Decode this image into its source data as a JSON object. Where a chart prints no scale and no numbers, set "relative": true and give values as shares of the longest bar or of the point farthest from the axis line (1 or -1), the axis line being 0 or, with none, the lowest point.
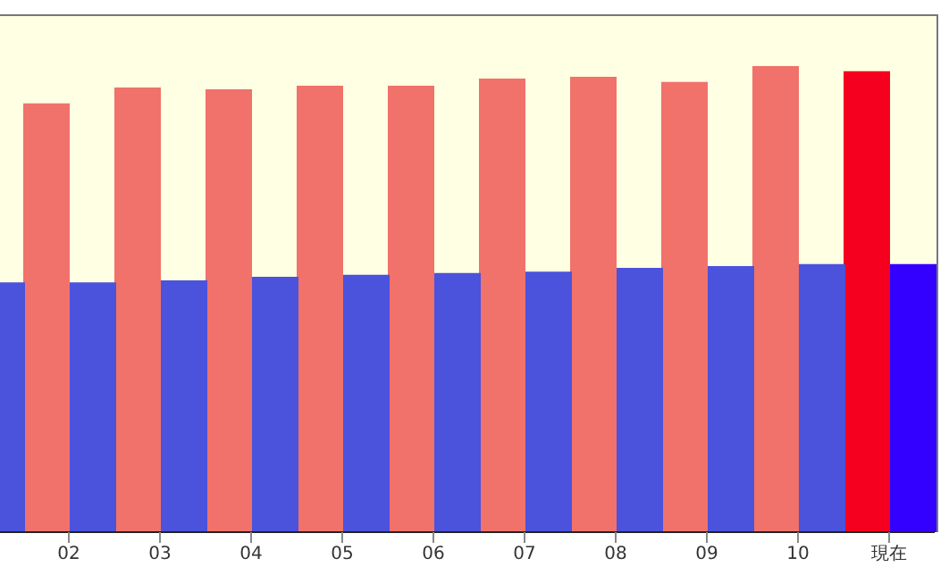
{
  "chart_data": {
    "type": "bar",
    "relative": true,
    "categories": [
      null,
      "02",
      "03",
      "04",
      "05",
      "06",
      "07",
      "08",
      "09",
      "10",
      "現在"
    ],
    "series": [
      {
        "colors": [
          "#f0726a",
          "#f0726a",
          "#f0726a",
          "#f0726a",
          "#f0726a",
          "#f0726a",
          "#f0726a",
          "#f0726a",
          "#f0726a",
          "#f0726a",
          "#f5001e"
        ],
        "values": [
          null,
          0.92,
          0.954,
          0.95,
          0.958,
          0.958,
          0.973,
          0.977,
          0.966,
          1,
          0.989
        ]
      },
      {
        "colors": [
          "#4b52dc",
          "#4b52dc",
          "#4b52dc",
          "#4b52dc",
          "#4b52dc",
          "#4b52dc",
          "#4b52dc",
          "#4b52dc",
          "#4b52dc",
          "#4b52dc",
          "#3300ff"
        ],
        "values": [
          0.536,
          0.536,
          0.54,
          0.548,
          0.552,
          0.556,
          0.559,
          0.567,
          0.571,
          0.575,
          0.575
        ]
      }
    ],
    "grid": false
  }
}
